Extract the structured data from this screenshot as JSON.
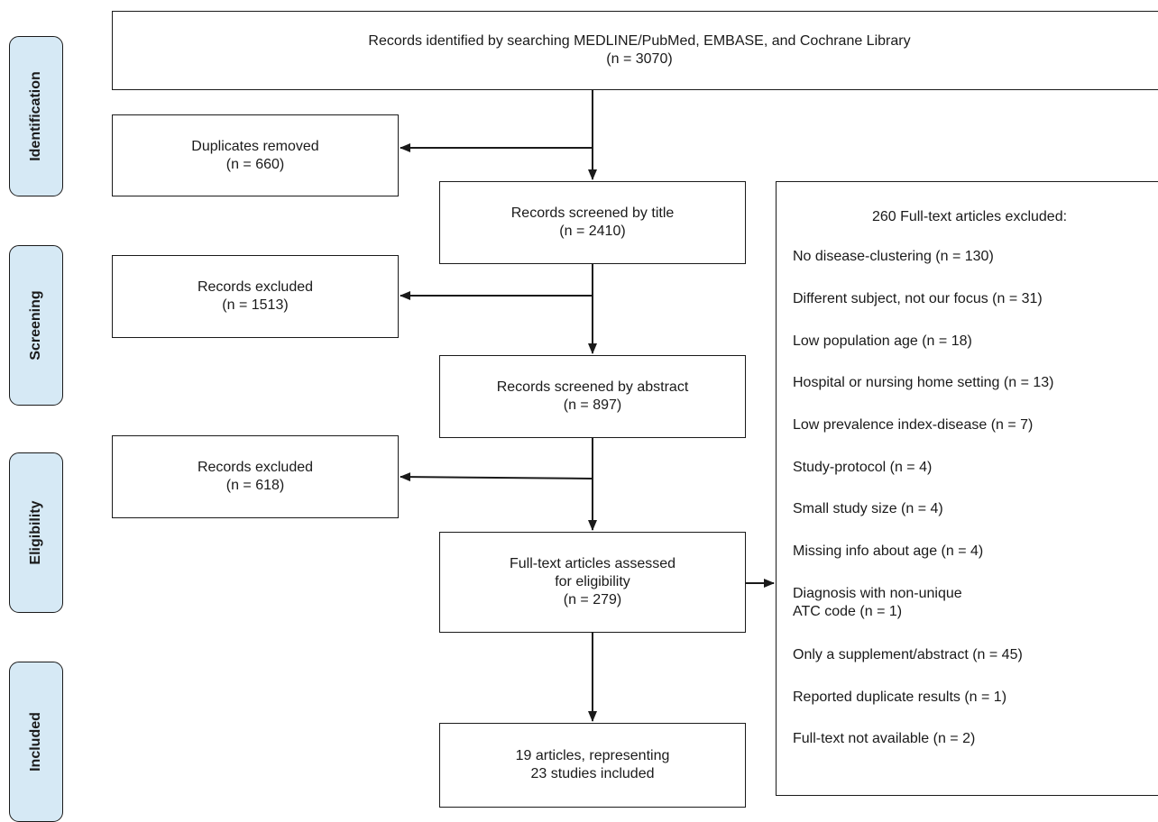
{
  "stages": {
    "identification": "Identification",
    "screening": "Screening",
    "eligibility": "Eligibility",
    "included": "Included"
  },
  "boxes": {
    "records_identified": [
      "Records identified by searching MEDLINE/PubMed, EMBASE, and Cochrane Library",
      "(n = 3070)"
    ],
    "duplicates_removed": [
      "Duplicates removed",
      "(n = 660)"
    ],
    "screened_title": [
      "Records screened by title",
      "(n = 2410)"
    ],
    "excluded_title": [
      "Records excluded",
      "(n = 1513)"
    ],
    "screened_abstract": [
      "Records screened by abstract",
      "(n = 897)"
    ],
    "excluded_abstract": [
      "Records excluded",
      "(n = 618)"
    ],
    "fulltext_assessed": [
      "Full-text articles assessed",
      "for eligibility",
      "(n = 279)"
    ],
    "included": [
      "19 articles, representing",
      "23 studies included"
    ]
  },
  "exclusions": {
    "title": "260 Full-text articles excluded:",
    "items": [
      "No disease-clustering (n = 130)",
      "Different subject, not our focus (n = 31)",
      "Low population age (n = 18)",
      "Hospital or nursing home setting (n = 13)",
      "Low prevalence index-disease (n = 7)",
      "Study-protocol (n = 4)",
      "Small study size (n = 4)",
      "Missing info about age (n = 4)",
      "Diagnosis with non-unique",
      "ATC code (n = 1)",
      "Only a supplement/abstract (n = 45)",
      "Reported duplicate results (n = 1)",
      "Full-text not available (n = 2)"
    ]
  }
}
